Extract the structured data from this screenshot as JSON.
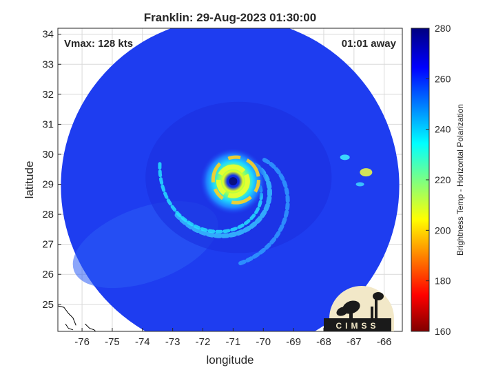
{
  "chart_data": {
    "type": "heatmap",
    "title": "Franklin: 29-Aug-2023 01:30:00",
    "xlabel": "longitude",
    "ylabel": "latitude",
    "xlim": [
      -76.8,
      -65.4
    ],
    "ylim": [
      24.1,
      34.2
    ],
    "x_ticks": [
      -76,
      -75,
      -74,
      -73,
      -72,
      -71,
      -70,
      -69,
      -68,
      -67,
      -66
    ],
    "y_ticks": [
      25,
      26,
      27,
      28,
      29,
      30,
      31,
      32,
      33,
      34
    ],
    "grid": true,
    "annotations": {
      "left": "Vmax: 128 kts",
      "right": "01:01 away"
    },
    "storm_center": {
      "lon": -71.0,
      "lat": 29.1
    },
    "swath": {
      "center_lon": -71.1,
      "center_lat": 28.95,
      "radius_deg": 5.6
    },
    "colorbar": {
      "label": "Brightness Temp - Horizontal Polarization",
      "range": [
        160,
        280
      ],
      "ticks": [
        160,
        180,
        200,
        220,
        240,
        260,
        280
      ],
      "colormap": "jet"
    },
    "logo_text": "CIMSS",
    "colors": {
      "background_field": "#1e3df0",
      "coast": "#000000"
    }
  }
}
